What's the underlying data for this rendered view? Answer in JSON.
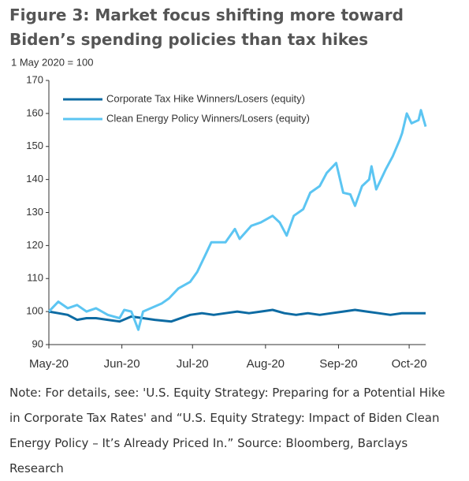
{
  "chart_data": {
    "type": "line",
    "title": "Figure 3: Market focus shifting more toward Biden’s spending policies than tax hikes",
    "subtitle": "1 May 2020 = 100",
    "note": "Note: For details, see: 'U.S. Equity Strategy: Preparing for a Potential Hike in Corporate Tax Rates' and “U.S. Equity Strategy: Impact of Biden Clean Energy Policy – It’s Already Priced In.” Source: Bloomberg, Barclays Research",
    "xlim": [
      0,
      160
    ],
    "xticks": [
      {
        "value": 0,
        "label": "May-20"
      },
      {
        "value": 31,
        "label": "Jun-20"
      },
      {
        "value": 61,
        "label": "Jul-20"
      },
      {
        "value": 92,
        "label": "Aug-20"
      },
      {
        "value": 123,
        "label": "Sep-20"
      },
      {
        "value": 153,
        "label": "Oct-20"
      }
    ],
    "ylim": [
      90,
      170
    ],
    "yticks": [
      90,
      100,
      110,
      120,
      130,
      140,
      150,
      160,
      170
    ],
    "legend": "upper left",
    "series": [
      {
        "name": "Corporate Tax Hike Winners/Losers (equity)",
        "color": "#0d6ba3",
        "x": [
          0,
          4,
          8,
          12,
          16,
          20,
          25,
          30,
          35,
          40,
          45,
          52,
          60,
          65,
          70,
          75,
          80,
          85,
          90,
          95,
          100,
          105,
          110,
          115,
          120,
          125,
          130,
          135,
          140,
          145,
          150,
          155,
          160
        ],
        "values": [
          100,
          99.5,
          99,
          97.5,
          98,
          98,
          97.5,
          97,
          98.5,
          98,
          97.5,
          97,
          99,
          99.5,
          99,
          99.5,
          100,
          99.5,
          100,
          100.5,
          99.5,
          99,
          99.5,
          99,
          99.5,
          100,
          100.5,
          100,
          99.5,
          99,
          99.5,
          99.5,
          99.5
        ]
      },
      {
        "name": "Clean Energy Policy Winners/Losers (equity)",
        "color": "#5cc5f2",
        "x": [
          0,
          4,
          8,
          12,
          16,
          20,
          25,
          30,
          32,
          35,
          38,
          40,
          48,
          51,
          55,
          60,
          63,
          67,
          69,
          75,
          79,
          81,
          86,
          90,
          95,
          98,
          101,
          104,
          108,
          111,
          115,
          118,
          122,
          125,
          128,
          130,
          133,
          136,
          137,
          139,
          143,
          146,
          149,
          150,
          152,
          154,
          157,
          158,
          160
        ],
        "values": [
          100,
          103,
          101,
          102,
          100,
          101,
          99,
          98,
          100.5,
          100,
          94.5,
          100,
          102.5,
          104,
          107,
          109,
          112,
          118,
          121,
          121,
          125,
          122,
          126,
          127,
          129,
          127,
          123,
          129,
          131,
          136,
          138,
          142,
          145,
          136,
          135.5,
          132,
          138,
          140,
          144,
          137,
          143,
          147,
          152,
          154,
          160,
          157,
          158,
          161,
          156
        ]
      }
    ]
  }
}
